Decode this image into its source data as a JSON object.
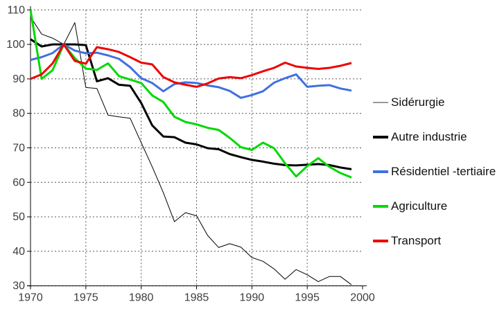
{
  "figure": {
    "background": "#ffffff",
    "text_color": "#3c3c3c"
  },
  "legend": {
    "items": [
      {
        "label": "Sidérurgie",
        "swatch_color": "#999999",
        "swatch_height": 2
      },
      {
        "label": "Autre industrie",
        "swatch_color": "#000000",
        "swatch_height": 4
      },
      {
        "label": "Résidentiel -tertiaire",
        "swatch_color": "#4070e0",
        "swatch_height": 4
      },
      {
        "label": "Agriculture",
        "swatch_color": "#00d900",
        "swatch_height": 4
      },
      {
        "label": "Transport",
        "swatch_color": "#ee0000",
        "swatch_height": 4
      }
    ]
  },
  "chart_data": {
    "type": "line",
    "title": "",
    "xlabel": "",
    "ylabel": "",
    "grid": "dashed horizontal and vertical",
    "legend_position": "right",
    "x_range": [
      1970,
      2000
    ],
    "y_range": [
      30,
      110
    ],
    "x_ticks": [
      1970,
      1975,
      1980,
      1985,
      1990,
      1995,
      2000
    ],
    "y_ticks": [
      110,
      100,
      90,
      80,
      70,
      60,
      50,
      40,
      30
    ],
    "x": [
      1970,
      1971,
      1972,
      1973,
      1974,
      1975,
      1976,
      1977,
      1978,
      1979,
      1980,
      1981,
      1982,
      1983,
      1984,
      1985,
      1986,
      1987,
      1988,
      1989,
      1990,
      1991,
      1992,
      1993,
      1994,
      1995,
      1996,
      1997,
      1998,
      1999
    ],
    "series": [
      {
        "name": "Sidérurgie",
        "color": "#000000",
        "stroke_width": 1,
        "values": [
          108,
          103,
          101.8,
          100,
          106.3,
          87.5,
          87.2,
          79.5,
          79,
          78.6,
          71.5,
          64.5,
          57,
          48.6,
          51.2,
          50.3,
          44.6,
          41.1,
          42.2,
          41.2,
          38.2,
          37.1,
          34.9,
          31.9,
          34.7,
          33.2,
          31.2,
          32.7,
          32.7,
          30.3
        ]
      },
      {
        "name": "Autre industrie",
        "color": "#000000",
        "stroke_width": 3,
        "values": [
          101.5,
          99.4,
          100,
          100,
          100,
          99.8,
          89.3,
          90.2,
          88.3,
          88,
          83,
          76.5,
          73.3,
          73.1,
          71.5,
          71,
          69.9,
          69.6,
          68.2,
          67.3,
          66.5,
          66,
          65.4,
          65,
          64.9,
          65.1,
          65.3,
          65,
          64.3,
          63.8
        ]
      },
      {
        "name": "Résidentiel -tertiaire",
        "color": "#4070e0",
        "stroke_width": 3,
        "values": [
          95.5,
          96.3,
          97.5,
          100,
          98.2,
          97.4,
          97.6,
          96.8,
          95.8,
          93.4,
          90.2,
          88.8,
          86.4,
          88.5,
          89,
          88.8,
          88.1,
          87.6,
          86.5,
          84.5,
          85.3,
          86.4,
          88.9,
          90.2,
          91.3,
          87.7,
          88,
          88.2,
          87.2,
          86.6
        ]
      },
      {
        "name": "Agriculture",
        "color": "#00d900",
        "stroke_width": 3,
        "values": [
          110,
          90,
          92.5,
          100,
          96,
          93,
          92.6,
          94.5,
          90.8,
          89.8,
          88.8,
          85.2,
          83.3,
          79,
          77.5,
          76.8,
          75.8,
          75.2,
          72.9,
          70.2,
          69.4,
          71.5,
          69.9,
          65.5,
          61.7,
          64.7,
          67,
          64.5,
          62.7,
          61.4
        ]
      },
      {
        "name": "Transport",
        "color": "#ee0000",
        "stroke_width": 3,
        "values": [
          90,
          91.3,
          94.5,
          100,
          95.2,
          94.4,
          99.2,
          98.6,
          97.8,
          96.3,
          94.7,
          94.2,
          90.5,
          89,
          88.3,
          87.7,
          88.7,
          90.1,
          90.5,
          90.2,
          91.1,
          92.2,
          93.2,
          94.7,
          93.6,
          93.2,
          92.9,
          93.2,
          93.8,
          94.6
        ]
      }
    ]
  }
}
